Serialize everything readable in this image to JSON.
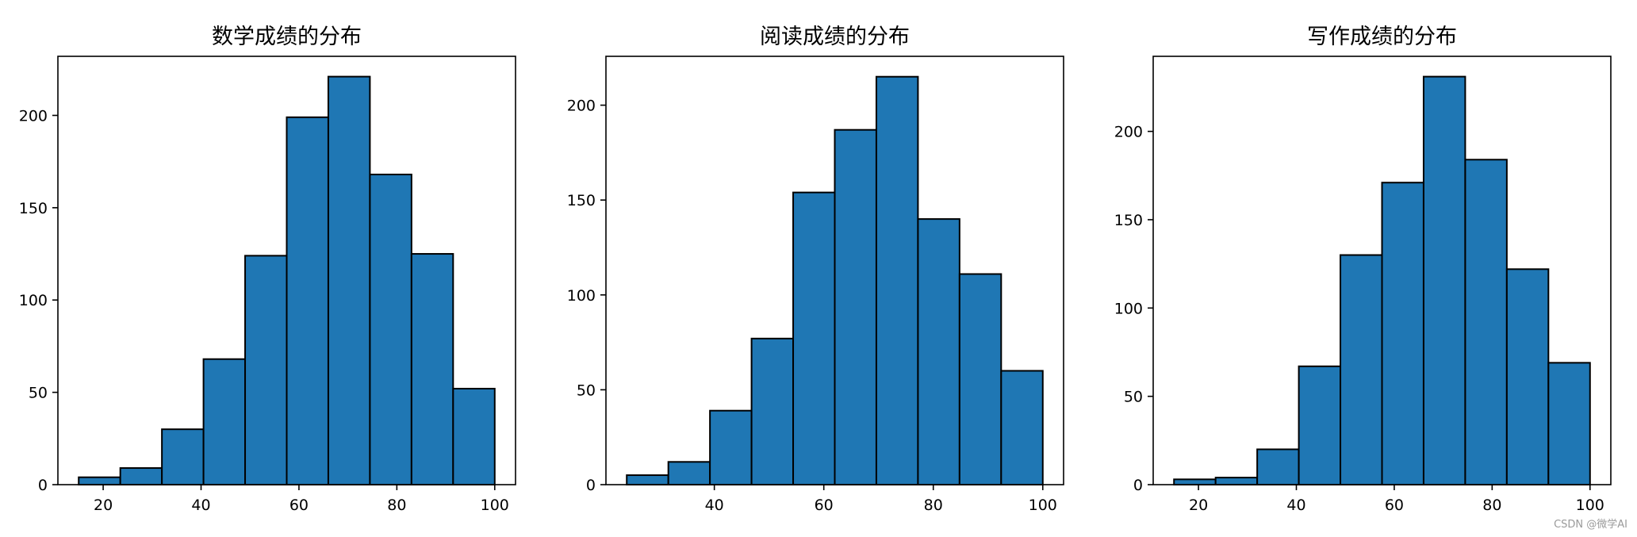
{
  "watermark": "CSDN @微学AI",
  "style": {
    "bar_color": "#1f77b4",
    "edge_color": "#000000"
  },
  "chart_data": [
    {
      "type": "bar",
      "title": "数学成绩的分布",
      "xlabel": "",
      "ylabel": "",
      "bin_edges": [
        15,
        23.5,
        32,
        40.5,
        49,
        57.5,
        66,
        74.5,
        83,
        91.5,
        100
      ],
      "values": [
        4,
        9,
        30,
        68,
        124,
        199,
        221,
        168,
        125,
        52
      ],
      "xlim": [
        10.75,
        104.25
      ],
      "ylim": [
        0,
        232
      ],
      "xticks": [
        20,
        40,
        60,
        80,
        100
      ],
      "yticks": [
        0,
        50,
        100,
        150,
        200
      ],
      "grid": false
    },
    {
      "type": "bar",
      "title": "阅读成绩的分布",
      "xlabel": "",
      "ylabel": "",
      "bin_edges": [
        24,
        31.6,
        39.2,
        46.8,
        54.4,
        62,
        69.6,
        77.2,
        84.8,
        92.4,
        100
      ],
      "values": [
        5,
        12,
        39,
        77,
        154,
        187,
        215,
        140,
        111,
        60
      ],
      "xlim": [
        20.2,
        103.8
      ],
      "ylim": [
        0,
        225.75
      ],
      "xticks": [
        40,
        60,
        80,
        100
      ],
      "yticks": [
        0,
        50,
        100,
        150,
        200
      ],
      "grid": false
    },
    {
      "type": "bar",
      "title": "写作成绩的分布",
      "xlabel": "",
      "ylabel": "",
      "bin_edges": [
        15,
        23.5,
        32,
        40.5,
        49,
        57.5,
        66,
        74.5,
        83,
        91.5,
        100
      ],
      "values": [
        3,
        4,
        20,
        67,
        130,
        171,
        231,
        184,
        122,
        69
      ],
      "xlim": [
        10.75,
        104.25
      ],
      "ylim": [
        0,
        242.5
      ],
      "xticks": [
        20,
        40,
        60,
        80,
        100
      ],
      "yticks": [
        0,
        50,
        100,
        150,
        200
      ],
      "grid": false
    }
  ]
}
